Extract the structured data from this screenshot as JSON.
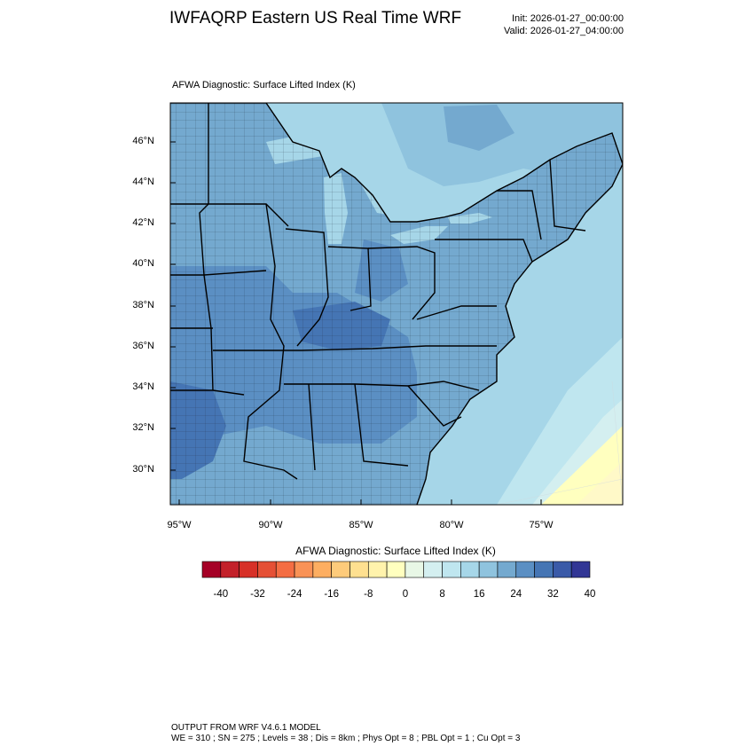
{
  "header": {
    "title": "IWFAQRP Eastern US Real Time WRF",
    "init": "Init: 2026-01-27_00:00:00",
    "valid": "Valid: 2026-01-27_04:00:00"
  },
  "map": {
    "subtitle": "AFWA Diagnostic: Surface Lifted Index   (K)",
    "lat_labels": [
      "46°N",
      "44°N",
      "42°N",
      "40°N",
      "38°N",
      "36°N",
      "34°N",
      "32°N",
      "30°N"
    ],
    "lon_labels": [
      "95°W",
      "90°W",
      "85°W",
      "80°W",
      "75°W"
    ]
  },
  "colorbar": {
    "title": "AFWA Diagnostic: Surface Lifted Index  (K)",
    "ticks": [
      "-40",
      "-32",
      "-24",
      "-16",
      "-8",
      "0",
      "8",
      "16",
      "24",
      "32",
      "40"
    ],
    "colors": [
      "#a50026",
      "#c3212a",
      "#d73027",
      "#e55035",
      "#f46d43",
      "#f99256",
      "#fdae61",
      "#fecb7b",
      "#fee090",
      "#fff3ac",
      "#ffffbf",
      "#e8f7e6",
      "#d4eff0",
      "#bfe6ef",
      "#a6d6e8",
      "#8fc3de",
      "#74a9cf",
      "#5b8fc3",
      "#4575b4",
      "#3a5aa8",
      "#313695"
    ]
  },
  "footer": {
    "line1": "OUTPUT FROM WRF V4.6.1 MODEL",
    "line2": "WE = 310 ; SN = 275 ; Levels = 38 ; Dis = 8km ; Phys Opt = 8 ; PBL Opt = 1 ; Cu Opt = 3"
  }
}
